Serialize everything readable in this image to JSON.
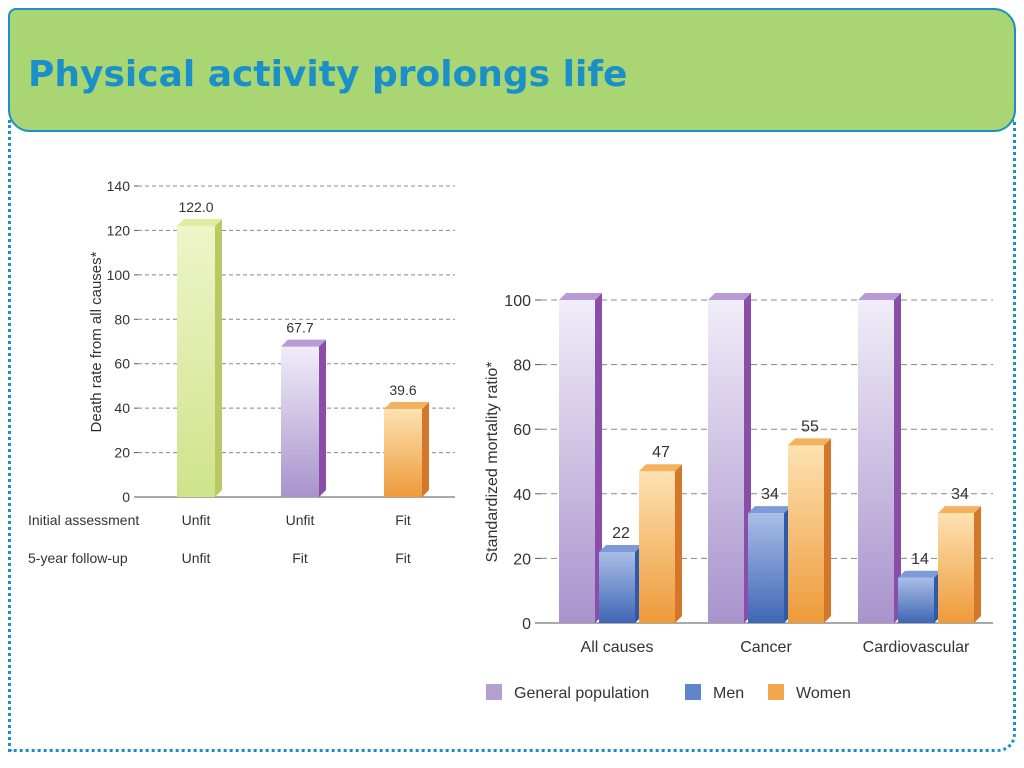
{
  "title": "Physical activity prolongs life",
  "colors": {
    "accent": "#1a8fc8",
    "header_bg": "#a9d673",
    "green_bar": "#cfe38b",
    "purple_bar": "#b39fd0",
    "blue_bar": "#5f86c9",
    "orange_bar": "#f3a74d"
  },
  "chart_data": [
    {
      "type": "bar",
      "ylabel": "Death rate from all causes*",
      "ylim": [
        0,
        140
      ],
      "yticks": [
        "0",
        "20",
        "40",
        "60",
        "80",
        "100",
        "120",
        "140"
      ],
      "values": [
        122.0,
        67.7,
        39.6
      ],
      "value_labels": [
        "122.0",
        "67.7",
        "39.6"
      ],
      "bar_colors": [
        "green",
        "purple",
        "orange"
      ],
      "row_labels": [
        "Initial assessment",
        "5-year follow-up"
      ],
      "rows": [
        [
          "Unfit",
          "Unfit",
          "Fit"
        ],
        [
          "Unfit",
          "Fit",
          "Fit"
        ]
      ],
      "grid": true
    },
    {
      "type": "bar",
      "ylabel": "Standardized mortality ratio*",
      "ylim": [
        0,
        100
      ],
      "yticks": [
        "0",
        "20",
        "40",
        "60",
        "80",
        "100"
      ],
      "categories": [
        "All causes",
        "Cancer",
        "Cardiovascular"
      ],
      "series": [
        {
          "name": "General population",
          "color": "purple",
          "values": [
            100,
            100,
            100
          ],
          "labels": [
            "",
            "",
            ""
          ]
        },
        {
          "name": "Men",
          "color": "blue",
          "values": [
            22,
            34,
            14
          ],
          "labels": [
            "22",
            "34",
            "14"
          ]
        },
        {
          "name": "Women",
          "color": "orange",
          "values": [
            47,
            55,
            34
          ],
          "labels": [
            "47",
            "55",
            "34"
          ]
        }
      ],
      "legend": [
        "General population",
        "Men",
        "Women"
      ],
      "legend_position": "bottom",
      "grid": true
    }
  ]
}
